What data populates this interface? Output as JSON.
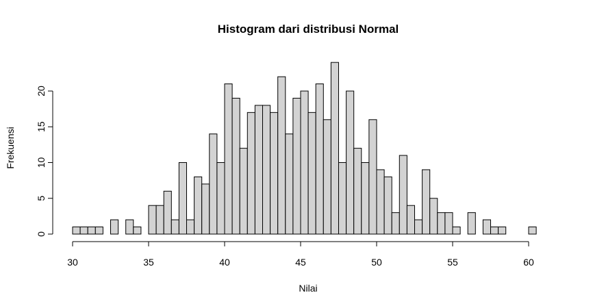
{
  "chart_data": {
    "type": "bar",
    "title": "Histogram dari distribusi Normal",
    "xlabel": "Nilai",
    "ylabel": "Frekuensi",
    "bin_width": 0.5,
    "bin_start": 30,
    "xlim": [
      30,
      61
    ],
    "ylim": [
      0,
      24
    ],
    "x_ticks": [
      30,
      35,
      40,
      45,
      50,
      55,
      60
    ],
    "y_ticks": [
      0,
      5,
      10,
      15,
      20
    ],
    "bar_color": "#d3d3d3",
    "bar_border_color": "#000000",
    "grid": false,
    "legend": "none",
    "values": [
      1,
      1,
      1,
      1,
      0,
      2,
      0,
      2,
      1,
      0,
      4,
      4,
      6,
      2,
      10,
      2,
      8,
      7,
      14,
      10,
      21,
      19,
      12,
      17,
      18,
      18,
      17,
      22,
      14,
      19,
      20,
      17,
      21,
      16,
      24,
      10,
      20,
      12,
      10,
      16,
      9,
      8,
      3,
      11,
      4,
      2,
      9,
      5,
      3,
      3,
      1,
      0,
      3,
      0,
      2,
      1,
      1,
      0,
      0,
      0,
      1,
      0
    ]
  }
}
